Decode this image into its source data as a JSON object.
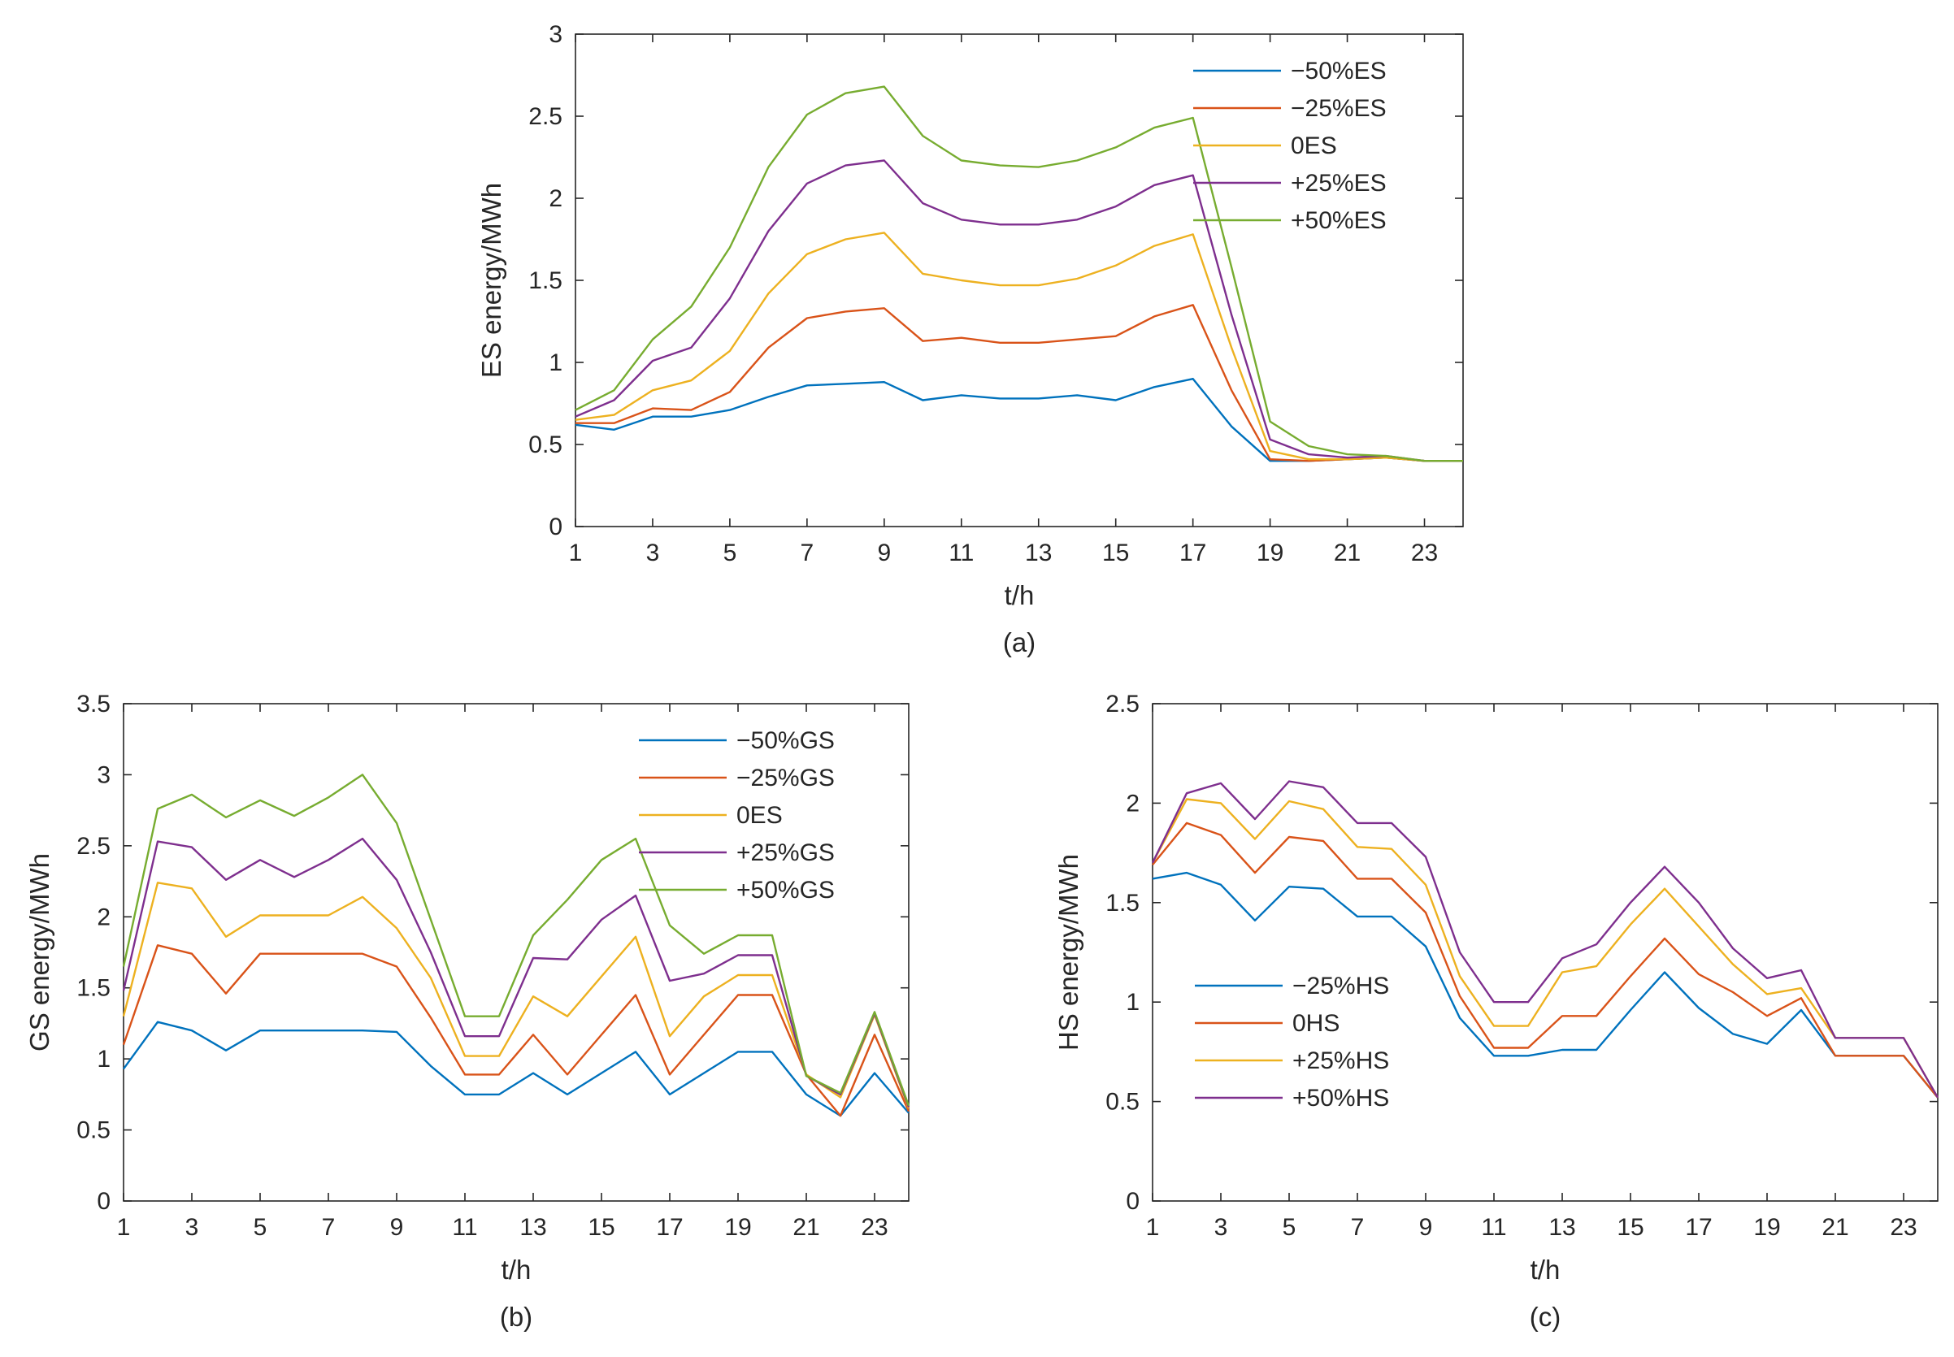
{
  "colors": {
    "series1": "#0072BD",
    "series2": "#D95319",
    "series3": "#EDB120",
    "series4": "#7E2F8E",
    "series5": "#77AC30",
    "axis": "#262626"
  },
  "chart_data": [
    {
      "id": "a",
      "type": "line",
      "caption": "(a)",
      "xlabel": "t/h",
      "ylabel": "ES energy/MWh",
      "xlim": [
        1,
        24
      ],
      "ylim": [
        0,
        3
      ],
      "xticks": [
        1,
        3,
        5,
        7,
        9,
        11,
        13,
        15,
        17,
        19,
        21,
        23
      ],
      "yticks": [
        0,
        0.5,
        1,
        1.5,
        2,
        2.5,
        3
      ],
      "grid": false,
      "legend_position": "top-right",
      "x": [
        1,
        2,
        3,
        4,
        5,
        6,
        7,
        8,
        9,
        10,
        11,
        12,
        13,
        14,
        15,
        16,
        17,
        18,
        19,
        20,
        21,
        22,
        23,
        24
      ],
      "series": [
        {
          "name": "−50%ES",
          "color_key": "series1",
          "values": [
            0.62,
            0.59,
            0.67,
            0.67,
            0.71,
            0.79,
            0.86,
            0.87,
            0.88,
            0.77,
            0.8,
            0.78,
            0.78,
            0.8,
            0.77,
            0.85,
            0.9,
            0.61,
            0.4,
            0.4,
            0.41,
            0.42,
            0.4,
            0.4
          ]
        },
        {
          "name": "−25%ES",
          "color_key": "series2",
          "values": [
            0.63,
            0.63,
            0.72,
            0.71,
            0.82,
            1.09,
            1.27,
            1.31,
            1.33,
            1.13,
            1.15,
            1.12,
            1.12,
            1.14,
            1.16,
            1.28,
            1.35,
            0.83,
            0.41,
            0.4,
            0.41,
            0.42,
            0.4,
            0.4
          ]
        },
        {
          "name": "0ES",
          "color_key": "series3",
          "values": [
            0.65,
            0.68,
            0.83,
            0.89,
            1.07,
            1.42,
            1.66,
            1.75,
            1.79,
            1.54,
            1.5,
            1.47,
            1.47,
            1.51,
            1.59,
            1.71,
            1.78,
            1.09,
            0.46,
            0.41,
            0.41,
            0.42,
            0.4,
            0.4
          ]
        },
        {
          "name": "+25%ES",
          "color_key": "series4",
          "values": [
            0.67,
            0.77,
            1.01,
            1.09,
            1.39,
            1.8,
            2.09,
            2.2,
            2.23,
            1.97,
            1.87,
            1.84,
            1.84,
            1.87,
            1.95,
            2.08,
            2.14,
            1.29,
            0.53,
            0.44,
            0.42,
            0.43,
            0.4,
            0.4
          ]
        },
        {
          "name": "+50%ES",
          "color_key": "series5",
          "values": [
            0.71,
            0.83,
            1.14,
            1.34,
            1.7,
            2.19,
            2.51,
            2.64,
            2.68,
            2.38,
            2.23,
            2.2,
            2.19,
            2.23,
            2.31,
            2.43,
            2.49,
            1.58,
            0.64,
            0.49,
            0.44,
            0.43,
            0.4,
            0.4
          ]
        }
      ]
    },
    {
      "id": "b",
      "type": "line",
      "caption": "(b)",
      "xlabel": "t/h",
      "ylabel": "GS energy/MWh",
      "xlim": [
        1,
        24
      ],
      "ylim": [
        0,
        3.5
      ],
      "xticks": [
        1,
        3,
        5,
        7,
        9,
        11,
        13,
        15,
        17,
        19,
        21,
        23
      ],
      "yticks": [
        0,
        0.5,
        1,
        1.5,
        2,
        2.5,
        3,
        3.5
      ],
      "grid": false,
      "legend_position": "top-right",
      "x": [
        1,
        2,
        3,
        4,
        5,
        6,
        7,
        8,
        9,
        10,
        11,
        12,
        13,
        14,
        15,
        16,
        17,
        18,
        19,
        20,
        21,
        22,
        23,
        24
      ],
      "series": [
        {
          "name": "−50%GS",
          "color_key": "series1",
          "values": [
            0.93,
            1.26,
            1.2,
            1.06,
            1.2,
            1.2,
            1.2,
            1.2,
            1.19,
            0.95,
            0.75,
            0.75,
            0.9,
            0.75,
            0.9,
            1.05,
            0.75,
            0.9,
            1.05,
            1.05,
            0.75,
            0.6,
            0.9,
            0.62
          ]
        },
        {
          "name": "−25%GS",
          "color_key": "series2",
          "values": [
            1.1,
            1.8,
            1.74,
            1.46,
            1.74,
            1.74,
            1.74,
            1.74,
            1.65,
            1.29,
            0.89,
            0.89,
            1.17,
            0.89,
            1.17,
            1.45,
            0.89,
            1.17,
            1.45,
            1.45,
            0.89,
            0.6,
            1.17,
            0.63
          ]
        },
        {
          "name": "0ES",
          "color_key": "series3",
          "values": [
            1.3,
            2.24,
            2.2,
            1.86,
            2.01,
            2.01,
            2.01,
            2.14,
            1.92,
            1.57,
            1.02,
            1.02,
            1.44,
            1.3,
            1.58,
            1.86,
            1.16,
            1.44,
            1.59,
            1.59,
            0.89,
            0.73,
            1.31,
            0.65
          ]
        },
        {
          "name": "+25%GS",
          "color_key": "series4",
          "values": [
            1.48,
            2.53,
            2.49,
            2.26,
            2.4,
            2.28,
            2.4,
            2.55,
            2.26,
            1.75,
            1.16,
            1.16,
            1.71,
            1.7,
            1.98,
            2.15,
            1.55,
            1.6,
            1.73,
            1.73,
            0.88,
            0.75,
            1.32,
            0.66
          ]
        },
        {
          "name": "+50%GS",
          "color_key": "series5",
          "values": [
            1.65,
            2.76,
            2.86,
            2.7,
            2.82,
            2.71,
            2.84,
            3.0,
            2.66,
            1.98,
            1.3,
            1.3,
            1.87,
            2.12,
            2.4,
            2.55,
            1.94,
            1.74,
            1.87,
            1.87,
            0.88,
            0.76,
            1.33,
            0.67
          ]
        }
      ]
    },
    {
      "id": "c",
      "type": "line",
      "caption": "(c)",
      "xlabel": "t/h",
      "ylabel": "HS energy/MWh",
      "xlim": [
        1,
        24
      ],
      "ylim": [
        0,
        2.5
      ],
      "xticks": [
        1,
        3,
        5,
        7,
        9,
        11,
        13,
        15,
        17,
        19,
        21,
        23
      ],
      "yticks": [
        0,
        0.5,
        1,
        1.5,
        2,
        2.5
      ],
      "grid": false,
      "legend_position": "bottom-left",
      "x": [
        1,
        2,
        3,
        4,
        5,
        6,
        7,
        8,
        9,
        10,
        11,
        12,
        13,
        14,
        15,
        16,
        17,
        18,
        19,
        20,
        21,
        22,
        23,
        24
      ],
      "series": [
        {
          "name": "−25%HS",
          "color_key": "series1",
          "values": [
            1.62,
            1.65,
            1.59,
            1.41,
            1.58,
            1.57,
            1.43,
            1.43,
            1.28,
            0.92,
            0.73,
            0.73,
            0.76,
            0.76,
            0.96,
            1.15,
            0.97,
            0.84,
            0.79,
            0.96,
            0.73,
            0.73,
            0.73,
            0.52
          ]
        },
        {
          "name": "0HS",
          "color_key": "series2",
          "values": [
            1.69,
            1.9,
            1.84,
            1.65,
            1.83,
            1.81,
            1.62,
            1.62,
            1.45,
            1.03,
            0.77,
            0.77,
            0.93,
            0.93,
            1.13,
            1.32,
            1.14,
            1.05,
            0.93,
            1.02,
            0.73,
            0.73,
            0.73,
            0.52
          ]
        },
        {
          "name": "+25%HS",
          "color_key": "series3",
          "values": [
            1.7,
            2.02,
            2.0,
            1.82,
            2.01,
            1.97,
            1.78,
            1.77,
            1.59,
            1.13,
            0.88,
            0.88,
            1.15,
            1.18,
            1.39,
            1.57,
            1.38,
            1.19,
            1.04,
            1.07,
            0.82,
            0.82,
            0.82,
            0.52
          ]
        },
        {
          "name": "+50%HS",
          "color_key": "series4",
          "values": [
            1.7,
            2.05,
            2.1,
            1.92,
            2.11,
            2.08,
            1.9,
            1.9,
            1.73,
            1.25,
            1.0,
            1.0,
            1.22,
            1.29,
            1.5,
            1.68,
            1.5,
            1.27,
            1.12,
            1.16,
            0.82,
            0.82,
            0.82,
            0.52
          ]
        }
      ]
    }
  ]
}
